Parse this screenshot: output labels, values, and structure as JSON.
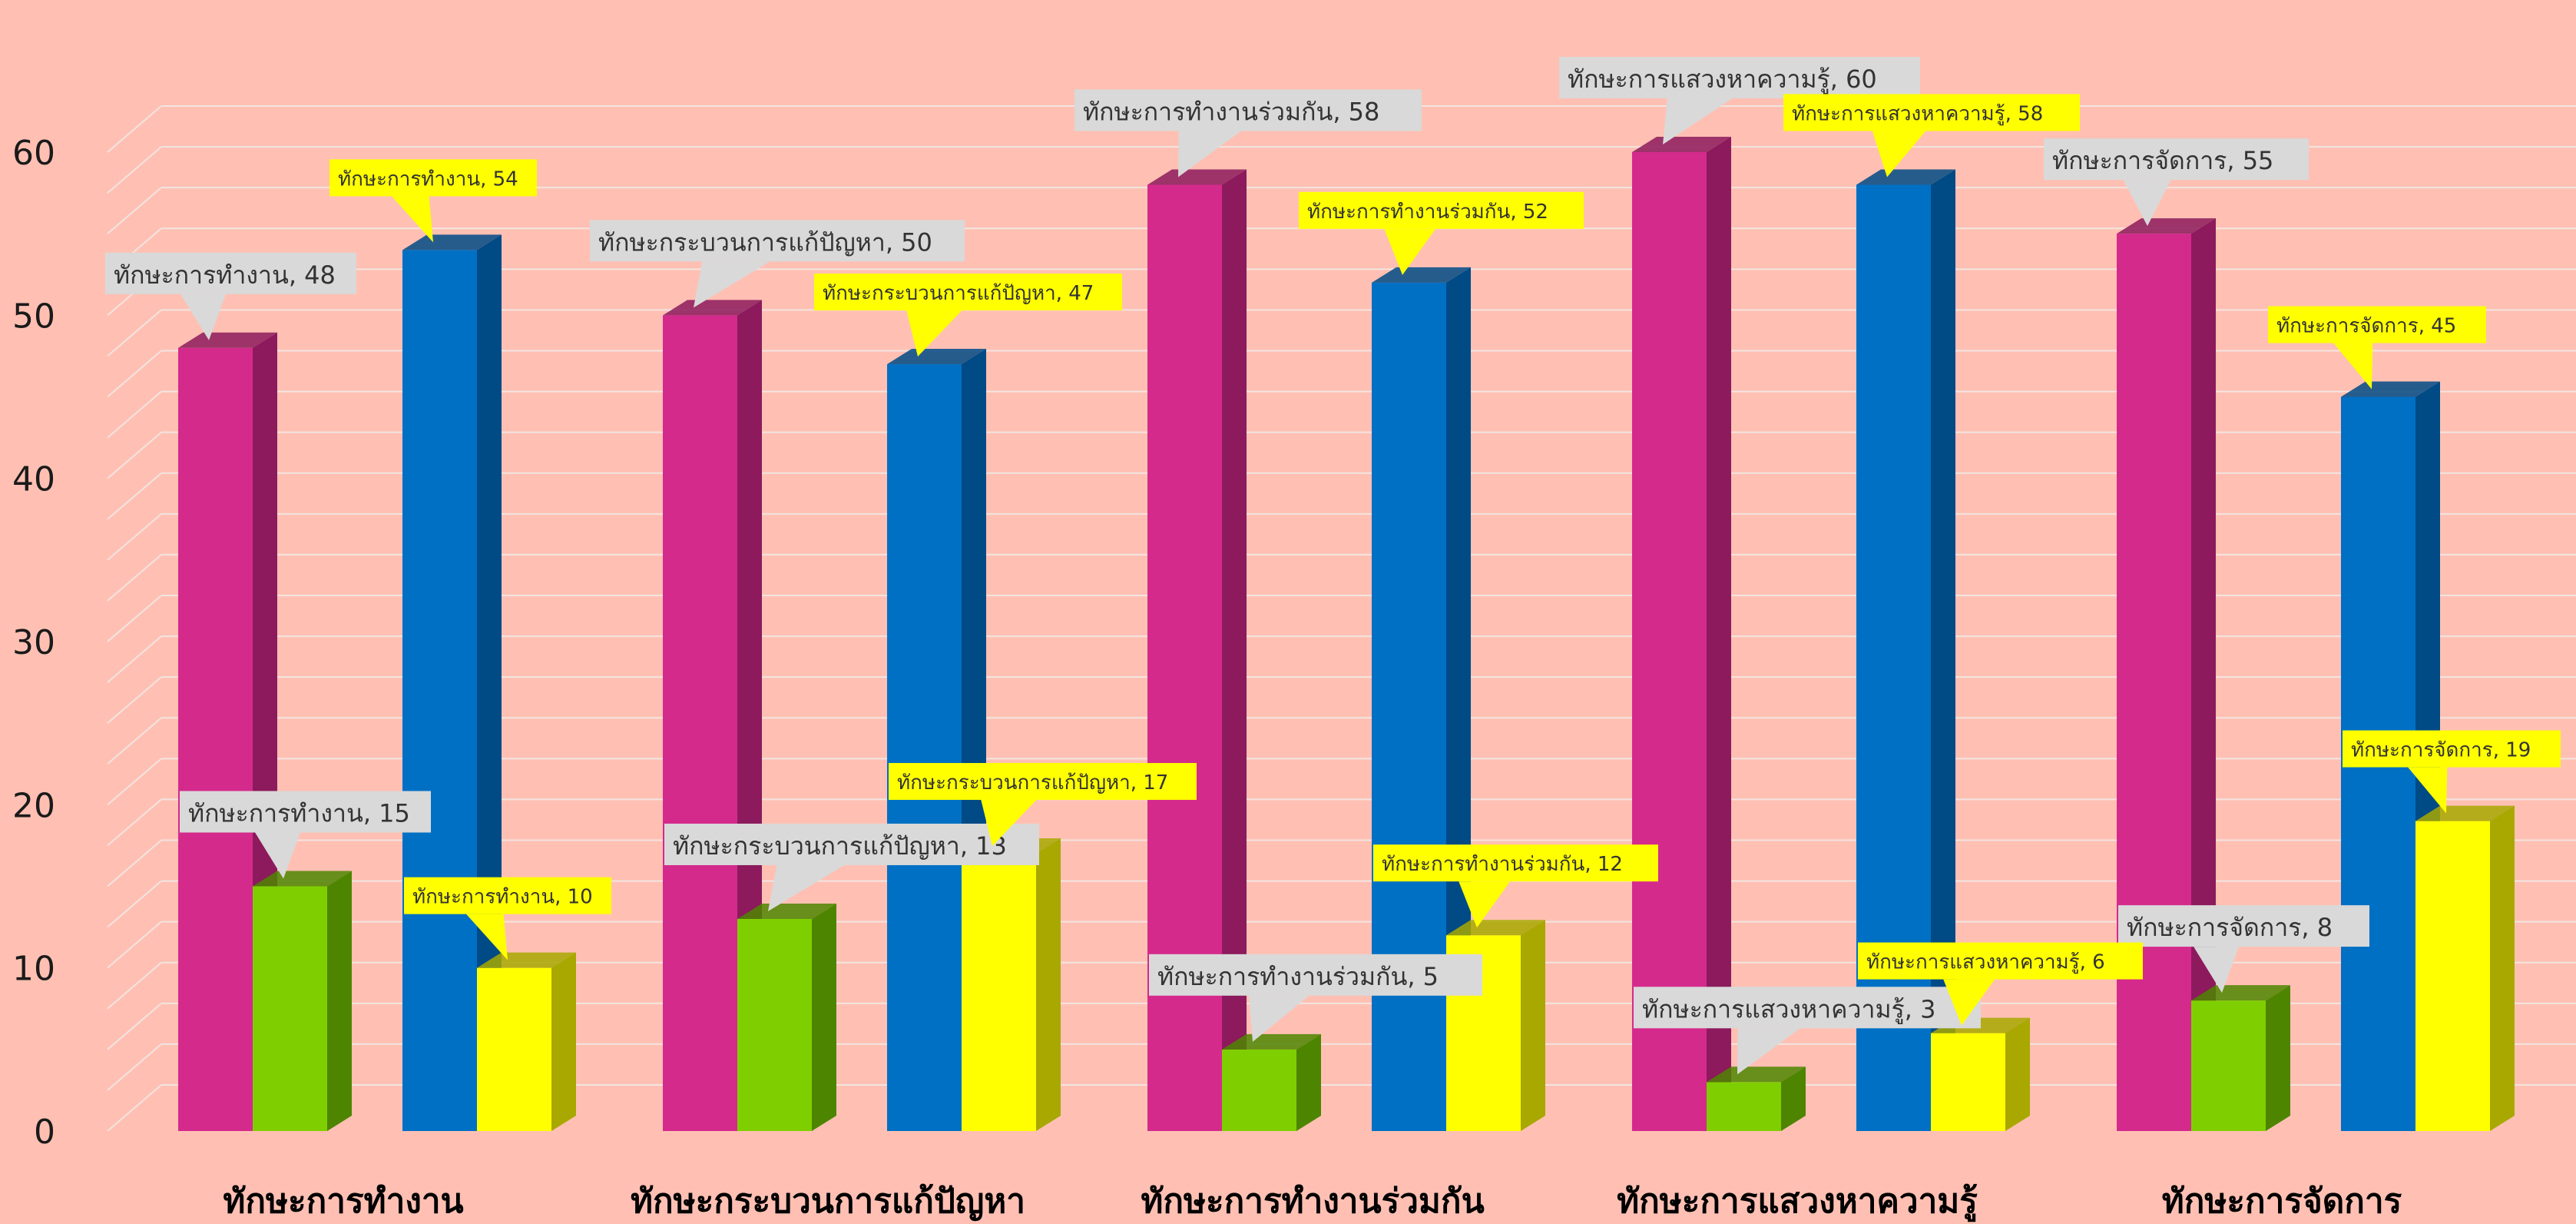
{
  "chart_data": {
    "type": "bar",
    "style": "3d-clustered-column",
    "categories": [
      "ทักษะการทำงาน",
      "ทักษะกระบวนการแก้ปัญหา",
      "ทักษะการทำงานร่วมกัน",
      "ทักษะการแสวงหาความรู้",
      "ทักษะการจัดการ"
    ],
    "series": [
      {
        "values": [
          48,
          50,
          58,
          60,
          55
        ],
        "color": "#D42A8C",
        "side_color": "#8C1A5C",
        "label_bg": "#D9D9D9"
      },
      {
        "values": [
          15,
          13,
          5,
          3,
          8
        ],
        "color": "#7FCF00",
        "side_color": "#4E8500",
        "label_bg": "#D9D9D9"
      },
      {
        "values": [
          54,
          47,
          52,
          58,
          45
        ],
        "color": "#0070C4",
        "side_color": "#004A85",
        "label_bg": "#FFFF00"
      },
      {
        "values": [
          10,
          17,
          12,
          6,
          19
        ],
        "color": "#FFFF00",
        "side_color": "#A8A800",
        "label_bg": "#FFFF00"
      }
    ],
    "data_labels": [
      [
        "ทักษะการทำงาน, 48",
        "ทักษะกระบวนการแก้ปัญหา, 50",
        "ทักษะการทำงานร่วมกัน, 58",
        "ทักษะการแสวงหาความรู้, 60",
        "ทักษะการจัดการ, 55"
      ],
      [
        "ทักษะการทำงาน, 15",
        "ทักษะกระบวนการแก้ปัญหา, 13",
        "ทักษะการทำงานร่วมกัน, 5",
        "ทักษะการแสวงหาความรู้, 3",
        "ทักษะการจัดการ, 8"
      ],
      [
        "ทักษะการทำงาน, 54",
        "ทักษะกระบวนการแก้ปัญหา, 47",
        "ทักษะการทำงานร่วมกัน, 52",
        "ทักษะการแสวงหาความรู้, 58",
        "ทักษะการจัดการ, 45"
      ],
      [
        "ทักษะการทำงาน, 10",
        "ทักษะกระบวนการแก้ปัญหา, 17",
        "ทักษะการทำงานร่วมกัน, 12",
        "ทักษะการแสวงหาความรู้, 6",
        "ทักษะการจัดการ, 19"
      ]
    ],
    "y_ticks": [
      "0",
      "10",
      "20",
      "30",
      "40",
      "50",
      "60"
    ],
    "ylim": [
      0,
      63
    ],
    "grid": true,
    "grid_color": "#F2E4E0",
    "background": "#FFC0B3",
    "title": "",
    "xlabel": "",
    "ylabel": ""
  }
}
